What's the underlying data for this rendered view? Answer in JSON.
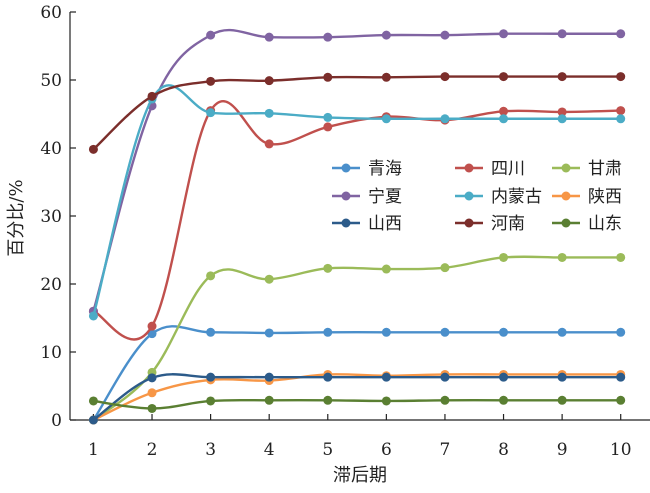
{
  "chart_data": {
    "type": "line",
    "xlabel": "滞后期",
    "ylabel": "百分比/%",
    "x": [
      1,
      2,
      3,
      4,
      5,
      6,
      7,
      8,
      9,
      10
    ],
    "xlim": [
      0.6,
      10.5
    ],
    "ylim": [
      0,
      60
    ],
    "yticks": [
      0,
      10,
      20,
      30,
      40,
      50,
      60
    ],
    "xticks": [
      1,
      2,
      3,
      4,
      5,
      6,
      7,
      8,
      9,
      10
    ],
    "grid": false,
    "legend_position": "center-right",
    "smooth": true,
    "series": [
      {
        "name": "青海",
        "color": "#4A8FCB",
        "values": [
          0,
          12.7,
          12.9,
          12.8,
          12.9,
          12.9,
          12.9,
          12.9,
          12.9,
          12.9
        ]
      },
      {
        "name": "四川",
        "color": "#C0504D",
        "values": [
          16,
          13.8,
          45.5,
          40.6,
          43.1,
          44.6,
          44.1,
          45.4,
          45.3,
          45.5
        ]
      },
      {
        "name": "甘肃",
        "color": "#9BBB59",
        "values": [
          0,
          7.0,
          21.2,
          20.7,
          22.3,
          22.2,
          22.4,
          23.9,
          23.9,
          23.9
        ]
      },
      {
        "name": "宁夏",
        "color": "#8064A2",
        "values": [
          16,
          46.2,
          56.6,
          56.3,
          56.3,
          56.6,
          56.6,
          56.8,
          56.8,
          56.8
        ]
      },
      {
        "name": "内蒙古",
        "color": "#4BACC6",
        "values": [
          15.3,
          47.2,
          45.2,
          45.1,
          44.5,
          44.3,
          44.3,
          44.3,
          44.3,
          44.3
        ]
      },
      {
        "name": "陕西",
        "color": "#F79646",
        "values": [
          0,
          4.0,
          5.9,
          5.8,
          6.7,
          6.5,
          6.7,
          6.7,
          6.7,
          6.7
        ]
      },
      {
        "name": "山西",
        "color": "#2C5B8A",
        "values": [
          0,
          6.2,
          6.3,
          6.3,
          6.3,
          6.3,
          6.3,
          6.3,
          6.3,
          6.3
        ]
      },
      {
        "name": "河南",
        "color": "#7B2E2B",
        "values": [
          39.8,
          47.6,
          49.8,
          49.9,
          50.4,
          50.4,
          50.5,
          50.5,
          50.5,
          50.5
        ]
      },
      {
        "name": "山东",
        "color": "#5A7F32",
        "values": [
          2.8,
          1.7,
          2.8,
          2.9,
          2.9,
          2.8,
          2.9,
          2.9,
          2.9,
          2.9
        ]
      }
    ]
  }
}
